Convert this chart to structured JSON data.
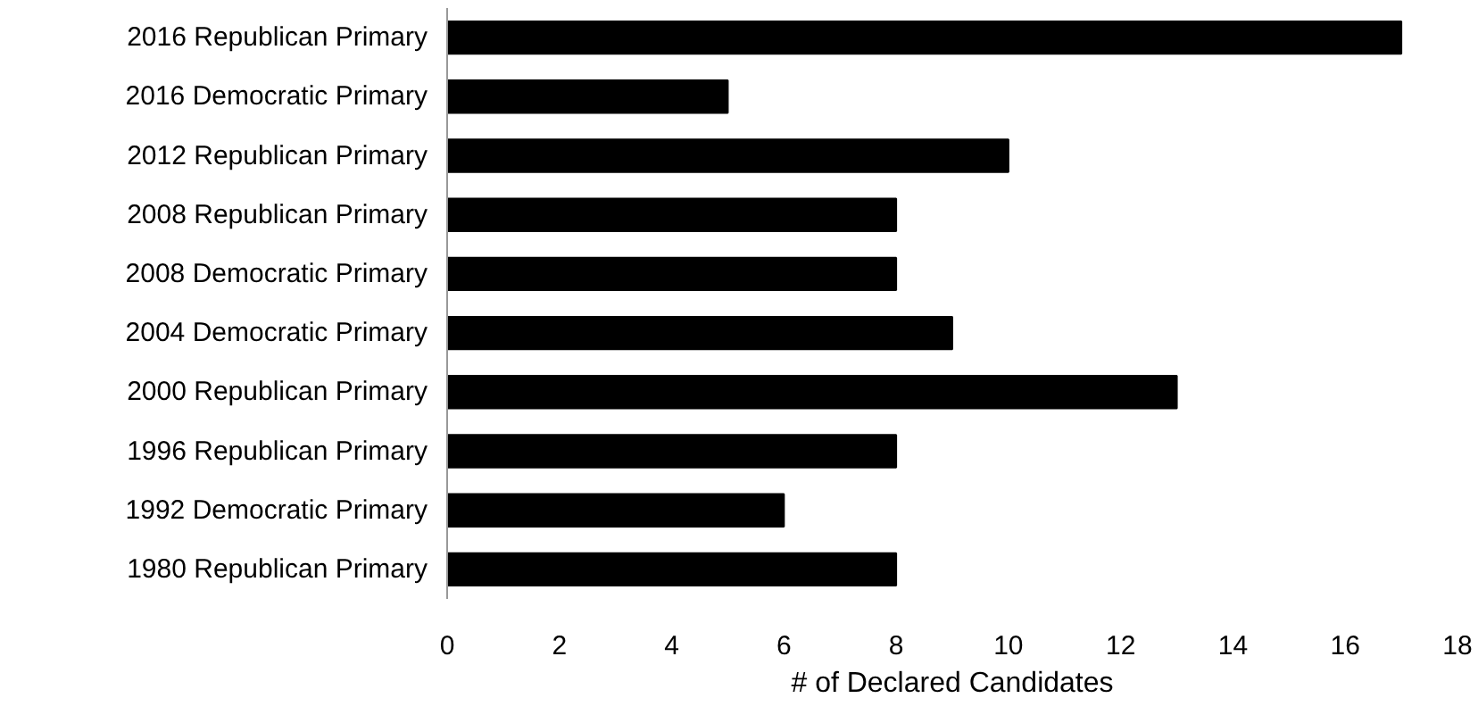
{
  "chart_data": {
    "type": "bar",
    "orientation": "horizontal",
    "xlabel": "# of Declared Candidates",
    "categories": [
      "2016 Republican Primary",
      "2016 Democratic Primary",
      "2012 Republican Primary",
      "2008 Republican Primary",
      "2008 Democratic Primary",
      "2004 Democratic Primary",
      "2000 Republican Primary",
      "1996 Republican Primary",
      "1992 Democratic Primary",
      "1980 Republican Primary"
    ],
    "values": [
      17,
      5,
      10,
      8,
      8,
      9,
      13,
      8,
      6,
      8
    ],
    "color": "#000000",
    "xlim": [
      0,
      18
    ],
    "xticks": [
      0,
      2,
      4,
      6,
      8,
      10,
      12,
      14,
      16,
      18
    ]
  }
}
